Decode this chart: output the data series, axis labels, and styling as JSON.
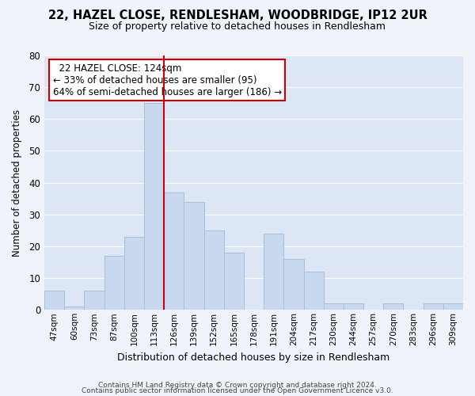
{
  "title1": "22, HAZEL CLOSE, RENDLESHAM, WOODBRIDGE, IP12 2UR",
  "title2": "Size of property relative to detached houses in Rendlesham",
  "xlabel": "Distribution of detached houses by size in Rendlesham",
  "ylabel": "Number of detached properties",
  "bin_labels": [
    "47sqm",
    "60sqm",
    "73sqm",
    "87sqm",
    "100sqm",
    "113sqm",
    "126sqm",
    "139sqm",
    "152sqm",
    "165sqm",
    "178sqm",
    "191sqm",
    "204sqm",
    "217sqm",
    "230sqm",
    "244sqm",
    "257sqm",
    "270sqm",
    "283sqm",
    "296sqm",
    "309sqm"
  ],
  "bar_values": [
    6,
    1,
    6,
    17,
    23,
    65,
    37,
    34,
    25,
    18,
    0,
    24,
    16,
    12,
    2,
    2,
    0,
    2,
    0,
    2,
    2
  ],
  "bar_color": "#c8d8ee",
  "bar_edge_color": "#a8bedd",
  "vline_color": "#cc0000",
  "ylim": [
    0,
    80
  ],
  "yticks": [
    0,
    10,
    20,
    30,
    40,
    50,
    60,
    70,
    80
  ],
  "annotation_title": "22 HAZEL CLOSE: 124sqm",
  "annotation_line1": "← 33% of detached houses are smaller (95)",
  "annotation_line2": "64% of semi-detached houses are larger (186) →",
  "annotation_box_color": "#ffffff",
  "annotation_box_edgecolor": "#cc0000",
  "footer1": "Contains HM Land Registry data © Crown copyright and database right 2024.",
  "footer2": "Contains public sector information licensed under the Open Government Licence v3.0.",
  "bg_color": "#f0f4fa",
  "plot_bg_color": "#dde6f5",
  "grid_color": "#ffffff",
  "figsize": [
    6.0,
    5.0
  ],
  "dpi": 100,
  "vline_bar_index": 6
}
